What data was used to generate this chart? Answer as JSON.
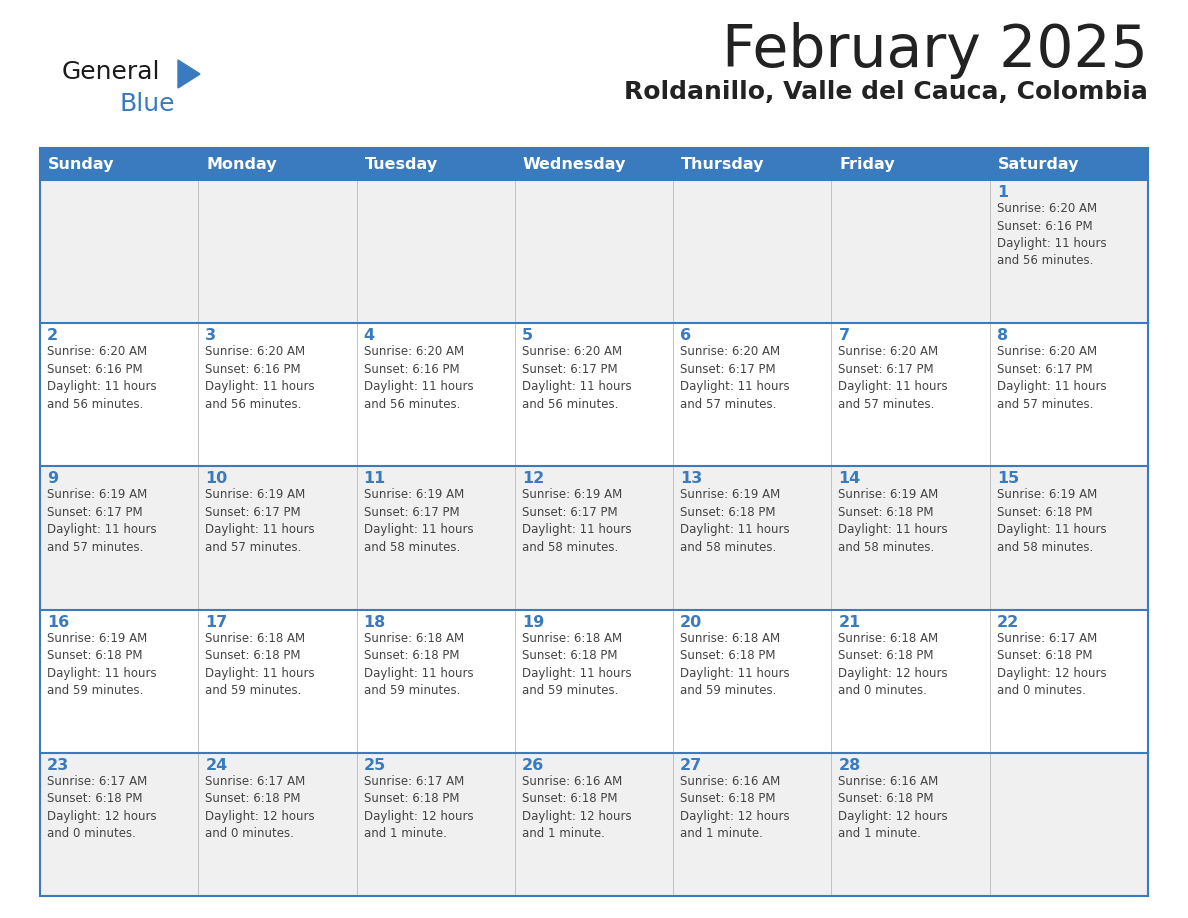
{
  "title": "February 2025",
  "subtitle": "Roldanillo, Valle del Cauca, Colombia",
  "days_of_week": [
    "Sunday",
    "Monday",
    "Tuesday",
    "Wednesday",
    "Thursday",
    "Friday",
    "Saturday"
  ],
  "header_bg": "#3a7bbf",
  "header_text": "#ffffff",
  "row_bg_even": "#f0f0f0",
  "row_bg_odd": "#ffffff",
  "grid_line_color": "#3a7bbf",
  "day_number_color": "#3a7bbf",
  "cell_text_color": "#444444",
  "title_color": "#222222",
  "subtitle_color": "#222222",
  "calendar_data": [
    [
      null,
      null,
      null,
      null,
      null,
      null,
      {
        "day": 1,
        "sunrise": "6:20 AM",
        "sunset": "6:16 PM",
        "daylight": "11 hours\nand 56 minutes."
      }
    ],
    [
      {
        "day": 2,
        "sunrise": "6:20 AM",
        "sunset": "6:16 PM",
        "daylight": "11 hours\nand 56 minutes."
      },
      {
        "day": 3,
        "sunrise": "6:20 AM",
        "sunset": "6:16 PM",
        "daylight": "11 hours\nand 56 minutes."
      },
      {
        "day": 4,
        "sunrise": "6:20 AM",
        "sunset": "6:16 PM",
        "daylight": "11 hours\nand 56 minutes."
      },
      {
        "day": 5,
        "sunrise": "6:20 AM",
        "sunset": "6:17 PM",
        "daylight": "11 hours\nand 56 minutes."
      },
      {
        "day": 6,
        "sunrise": "6:20 AM",
        "sunset": "6:17 PM",
        "daylight": "11 hours\nand 57 minutes."
      },
      {
        "day": 7,
        "sunrise": "6:20 AM",
        "sunset": "6:17 PM",
        "daylight": "11 hours\nand 57 minutes."
      },
      {
        "day": 8,
        "sunrise": "6:20 AM",
        "sunset": "6:17 PM",
        "daylight": "11 hours\nand 57 minutes."
      }
    ],
    [
      {
        "day": 9,
        "sunrise": "6:19 AM",
        "sunset": "6:17 PM",
        "daylight": "11 hours\nand 57 minutes."
      },
      {
        "day": 10,
        "sunrise": "6:19 AM",
        "sunset": "6:17 PM",
        "daylight": "11 hours\nand 57 minutes."
      },
      {
        "day": 11,
        "sunrise": "6:19 AM",
        "sunset": "6:17 PM",
        "daylight": "11 hours\nand 58 minutes."
      },
      {
        "day": 12,
        "sunrise": "6:19 AM",
        "sunset": "6:17 PM",
        "daylight": "11 hours\nand 58 minutes."
      },
      {
        "day": 13,
        "sunrise": "6:19 AM",
        "sunset": "6:18 PM",
        "daylight": "11 hours\nand 58 minutes."
      },
      {
        "day": 14,
        "sunrise": "6:19 AM",
        "sunset": "6:18 PM",
        "daylight": "11 hours\nand 58 minutes."
      },
      {
        "day": 15,
        "sunrise": "6:19 AM",
        "sunset": "6:18 PM",
        "daylight": "11 hours\nand 58 minutes."
      }
    ],
    [
      {
        "day": 16,
        "sunrise": "6:19 AM",
        "sunset": "6:18 PM",
        "daylight": "11 hours\nand 59 minutes."
      },
      {
        "day": 17,
        "sunrise": "6:18 AM",
        "sunset": "6:18 PM",
        "daylight": "11 hours\nand 59 minutes."
      },
      {
        "day": 18,
        "sunrise": "6:18 AM",
        "sunset": "6:18 PM",
        "daylight": "11 hours\nand 59 minutes."
      },
      {
        "day": 19,
        "sunrise": "6:18 AM",
        "sunset": "6:18 PM",
        "daylight": "11 hours\nand 59 minutes."
      },
      {
        "day": 20,
        "sunrise": "6:18 AM",
        "sunset": "6:18 PM",
        "daylight": "11 hours\nand 59 minutes."
      },
      {
        "day": 21,
        "sunrise": "6:18 AM",
        "sunset": "6:18 PM",
        "daylight": "12 hours\nand 0 minutes."
      },
      {
        "day": 22,
        "sunrise": "6:17 AM",
        "sunset": "6:18 PM",
        "daylight": "12 hours\nand 0 minutes."
      }
    ],
    [
      {
        "day": 23,
        "sunrise": "6:17 AM",
        "sunset": "6:18 PM",
        "daylight": "12 hours\nand 0 minutes."
      },
      {
        "day": 24,
        "sunrise": "6:17 AM",
        "sunset": "6:18 PM",
        "daylight": "12 hours\nand 0 minutes."
      },
      {
        "day": 25,
        "sunrise": "6:17 AM",
        "sunset": "6:18 PM",
        "daylight": "12 hours\nand 1 minute."
      },
      {
        "day": 26,
        "sunrise": "6:16 AM",
        "sunset": "6:18 PM",
        "daylight": "12 hours\nand 1 minute."
      },
      {
        "day": 27,
        "sunrise": "6:16 AM",
        "sunset": "6:18 PM",
        "daylight": "12 hours\nand 1 minute."
      },
      {
        "day": 28,
        "sunrise": "6:16 AM",
        "sunset": "6:18 PM",
        "daylight": "12 hours\nand 1 minute."
      },
      null
    ]
  ]
}
